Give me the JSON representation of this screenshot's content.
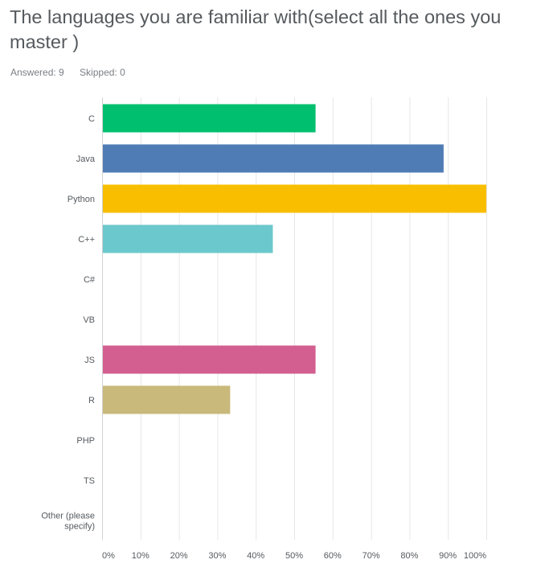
{
  "question": {
    "title": "The languages you are familiar with(select all the ones you master )",
    "answered_label": "Answered: 9",
    "skipped_label": "Skipped: 0"
  },
  "chart_data": {
    "type": "bar",
    "orientation": "horizontal",
    "categories": [
      "C",
      "Java",
      "Python",
      "C++",
      "C#",
      "VB",
      "JS",
      "R",
      "PHP",
      "TS",
      "Other (please specify)"
    ],
    "category_lines": [
      [
        "C"
      ],
      [
        "Java"
      ],
      [
        "Python"
      ],
      [
        "C++"
      ],
      [
        "C#"
      ],
      [
        "VB"
      ],
      [
        "JS"
      ],
      [
        "R"
      ],
      [
        "PHP"
      ],
      [
        "TS"
      ],
      [
        "Other (please",
        "specify)"
      ]
    ],
    "values": [
      55.56,
      88.89,
      100,
      44.44,
      0,
      0,
      55.56,
      33.33,
      0,
      0,
      0
    ],
    "colors": [
      "#00bf6f",
      "#507cb6",
      "#f9be00",
      "#6bc8cd",
      "#ff8b4f",
      "#7d5e90",
      "#d25f90",
      "#c9b97b",
      "#4a90e2",
      "#a3a3a3",
      "#9ba1a6"
    ],
    "xlim": [
      0,
      100
    ],
    "xticks": [
      0,
      10,
      20,
      30,
      40,
      50,
      60,
      70,
      80,
      90,
      100
    ],
    "xtick_labels": [
      "0%",
      "10%",
      "20%",
      "30%",
      "40%",
      "50%",
      "60%",
      "70%",
      "80%",
      "90%",
      "100%"
    ],
    "grid": true,
    "title": "",
    "xlabel": "",
    "ylabel": ""
  }
}
